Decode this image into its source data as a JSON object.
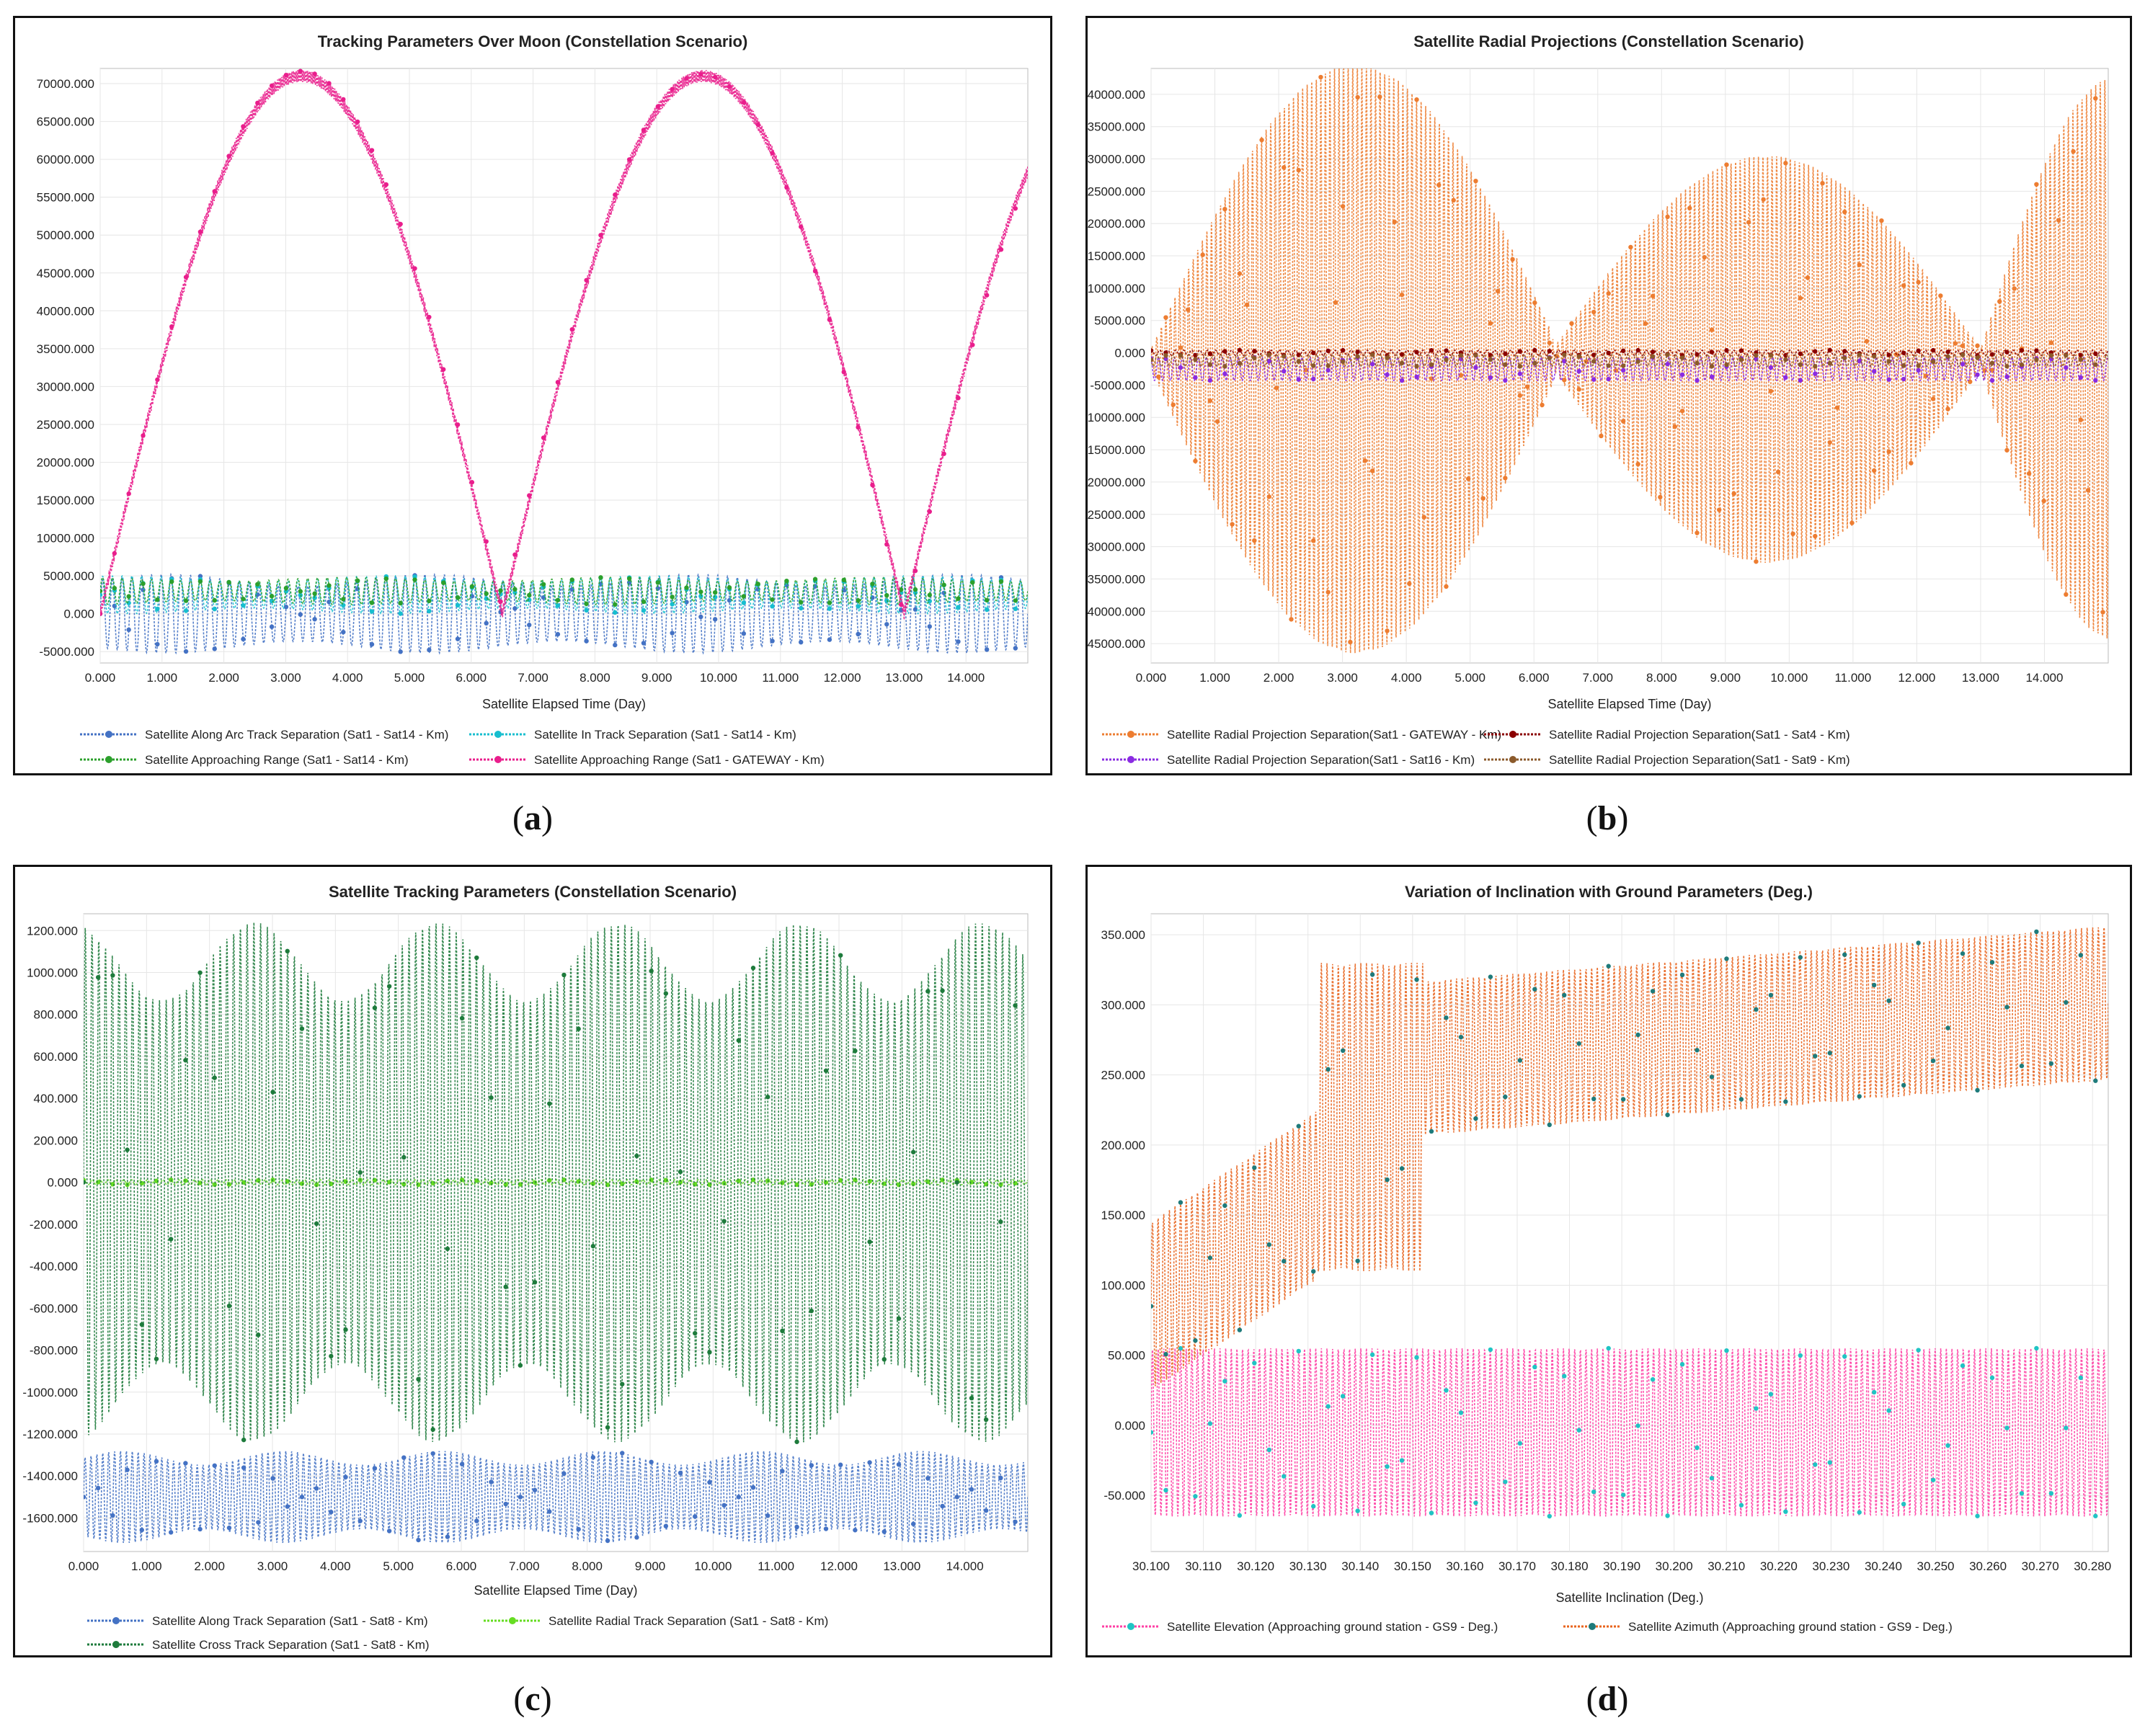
{
  "captions": {
    "a": "a",
    "b": "b",
    "c": "c",
    "d": "d"
  },
  "chart_data": [
    {
      "id": "a",
      "type": "line",
      "title": "Tracking Parameters Over Moon (Constellation Scenario)",
      "xlabel": "Satellite Elapsed Time (Day)",
      "ylabel": "",
      "xlim": [
        0,
        15
      ],
      "ylim": [
        -6500,
        72000
      ],
      "xticks": [
        "0.000",
        "1.000",
        "2.000",
        "3.000",
        "4.000",
        "5.000",
        "6.000",
        "7.000",
        "8.000",
        "9.000",
        "10.000",
        "11.000",
        "12.000",
        "13.000",
        "14.000"
      ],
      "yticks": [
        "-5000.000",
        "0.000",
        "5000.000",
        "10000.000",
        "15000.000",
        "20000.000",
        "25000.000",
        "30000.000",
        "35000.000",
        "40000.000",
        "45000.000",
        "50000.000",
        "55000.000",
        "60000.000",
        "65000.000",
        "70000.000"
      ],
      "series": [
        {
          "name": "Satellite Along Arc Track Separation (Sat1 - Sat14 - Km)",
          "color": "#4472c4",
          "kind": "osc",
          "center": 0,
          "amp": 5200,
          "cycles": 95
        },
        {
          "name": "Satellite In Track Separation (Sat1 - Sat14 - Km)",
          "color": "#17becf",
          "kind": "osc",
          "center": 2500,
          "amp": 2500,
          "cycles": 95
        },
        {
          "name": "Satellite Approaching Range (Sat1 - Sat14 - Km)",
          "color": "#2ca02c",
          "kind": "osc",
          "center": 3000,
          "amp": 1800,
          "cycles": 95
        },
        {
          "name": "Satellite Approaching Range (Sat1 - GATEWAY - Km)",
          "color": "#e91e8c",
          "kind": "arch",
          "peak": 71000,
          "cycleDays": 6.5,
          "phase": 0
        }
      ]
    },
    {
      "id": "b",
      "type": "line",
      "title": "Satellite Radial Projections (Constellation Scenario)",
      "xlabel": "Satellite Elapsed Time (Day)",
      "ylabel": "",
      "xlim": [
        0,
        15
      ],
      "ylim": [
        -48000,
        44000
      ],
      "xticks": [
        "0.000",
        "1.000",
        "2.000",
        "3.000",
        "4.000",
        "5.000",
        "6.000",
        "7.000",
        "8.000",
        "9.000",
        "10.000",
        "11.000",
        "12.000",
        "13.000",
        "14.000"
      ],
      "yticks": [
        "-45000.000",
        "-40000.000",
        "-35000.000",
        "-30000.000",
        "-25000.000",
        "-20000.000",
        "-15000.000",
        "-10000.000",
        "-5000.000",
        "0.000",
        "5000.000",
        "10000.000",
        "15000.000",
        "20000.000",
        "25000.000",
        "30000.000",
        "35000.000",
        "40000.000"
      ],
      "series": [
        {
          "name": "Satellite Radial Projection Separation(Sat1 - GATEWAY - Km)",
          "color": "#ed7d31",
          "kind": "envelope",
          "cycles": 210
        },
        {
          "name": "Satellite Radial Projection Separation(Sat1 - Sat4 - Km)",
          "color": "#8b0000",
          "kind": "flat",
          "center": 0,
          "amp": 400
        },
        {
          "name": "Satellite Radial Projection Separation(Sat1 - Sat16 - Km)",
          "color": "#8a2be2",
          "kind": "flat",
          "center": -2500,
          "amp": 1800
        },
        {
          "name": "Satellite Radial Projection Separation(Sat1 - Sat9 - Km)",
          "color": "#8b5a2b",
          "kind": "flat",
          "center": -1200,
          "amp": 900
        }
      ]
    },
    {
      "id": "c",
      "type": "line",
      "title": "Satellite Tracking Parameters (Constellation Scenario)",
      "xlabel": "Satellite Elapsed Time (Day)",
      "ylabel": "",
      "xlim": [
        0,
        15
      ],
      "ylim": [
        -1760,
        1280
      ],
      "xticks": [
        "0.000",
        "1.000",
        "2.000",
        "3.000",
        "4.000",
        "5.000",
        "6.000",
        "7.000",
        "8.000",
        "9.000",
        "10.000",
        "11.000",
        "12.000",
        "13.000",
        "14.000"
      ],
      "yticks": [
        "-1600.000",
        "-1400.000",
        "-1200.000",
        "-1000.000",
        "-800.000",
        "-600.000",
        "-400.000",
        "-200.000",
        "0.000",
        "200.000",
        "400.000",
        "600.000",
        "800.000",
        "1000.000",
        "1200.000"
      ],
      "series": [
        {
          "name": "Satellite Along Track Separation (Sat1 - Sat8 - Km)",
          "color": "#4472c4",
          "kind": "band",
          "center": -1500,
          "amp": 220,
          "cycles": 160
        },
        {
          "name": "Satellite Radial Track Separation (Sat1 - Sat8 - Km)",
          "color": "#66dd22",
          "kind": "flat",
          "center": 0,
          "amp": 12
        },
        {
          "name": "Satellite Cross Track Separation (Sat1 - Sat8 - Km)",
          "color": "#1e7b3c",
          "kind": "osc",
          "center": 0,
          "amp": 1240,
          "cycles": 140
        }
      ]
    },
    {
      "id": "d",
      "type": "line",
      "title": "Variation of Inclination with Ground Parameters (Deg.)",
      "xlabel": "Satellite Inclination (Deg.)",
      "ylabel": "",
      "xlim": [
        30.1,
        30.283
      ],
      "ylim": [
        -90,
        365
      ],
      "xticks": [
        "30.100",
        "30.110",
        "30.120",
        "30.130",
        "30.140",
        "30.150",
        "30.160",
        "30.170",
        "30.180",
        "30.190",
        "30.200",
        "30.210",
        "30.220",
        "30.230",
        "30.240",
        "30.250",
        "30.260",
        "30.270",
        "30.280"
      ],
      "yticks": [
        "-50.000",
        "0.000",
        "50.000",
        "100.000",
        "150.000",
        "200.000",
        "250.000",
        "300.000",
        "350.000"
      ],
      "series": [
        {
          "name": "Satellite Elevation (Approaching ground station - GS9 - Deg.)",
          "color": "#ff3fa4",
          "marker": "#20c4c4",
          "kind": "elev"
        },
        {
          "name": "Satellite Azimuth (Approaching ground station - GS9 - Deg.)",
          "color": "#e8641e",
          "marker": "#1e7b7b",
          "kind": "azim"
        }
      ]
    }
  ]
}
